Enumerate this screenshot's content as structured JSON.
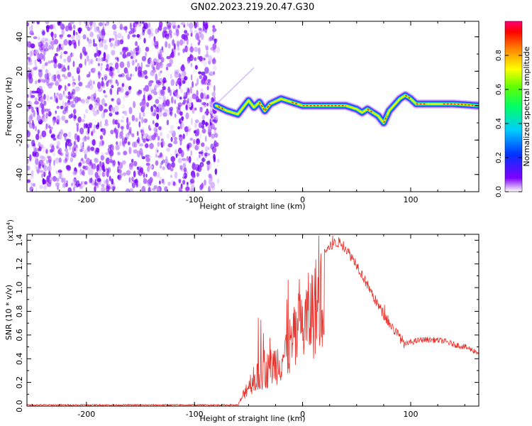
{
  "title": "GN02.2023.219.20.47.G30",
  "chart_data": [
    {
      "type": "heatmap",
      "xlabel": "Height of straight line (km)",
      "ylabel": "Frequency (Hz)",
      "xlim": [
        -255,
        163
      ],
      "ylim": [
        -50,
        49
      ],
      "x_ticks": [
        "-200",
        "-100",
        "0",
        "100"
      ],
      "y_ticks": [
        "40",
        "20",
        "0",
        "-20",
        "-40"
      ],
      "noise_region_x": [
        -255,
        -78
      ],
      "track": {
        "x": [
          -80,
          -70,
          -60,
          -50,
          -45,
          -40,
          -35,
          -30,
          -20,
          -10,
          0,
          20,
          40,
          50,
          55,
          60,
          70,
          75,
          80,
          90,
          95,
          100,
          105,
          120,
          140,
          163
        ],
        "y": [
          0,
          -3,
          -5,
          3,
          -1,
          2,
          -3,
          1,
          4,
          2,
          0,
          0,
          0,
          -2,
          -4,
          -2,
          -6,
          -10,
          -3,
          4,
          6,
          4,
          1,
          1,
          1,
          0
        ]
      },
      "colorbar": {
        "label": "Normalized spectral amplitude",
        "range": [
          0.0,
          1.0
        ],
        "ticks": [
          "0.0",
          "0.2",
          "0.4",
          "0.6",
          "0.8"
        ]
      }
    },
    {
      "type": "line",
      "xlabel": "Height of straight line (km)",
      "ylabel": "SNR (10 * v/v)",
      "y_scale_label": "(x10",
      "y_scale_exp": "4",
      "xlim": [
        -255,
        163
      ],
      "ylim": [
        0.0,
        1.45
      ],
      "x_ticks": [
        "-200",
        "-100",
        "0",
        "100"
      ],
      "y_ticks": [
        "0.0",
        "0.2",
        "0.4",
        "0.6",
        "0.8",
        "1.0",
        "1.2",
        "1.4"
      ],
      "line_color": "#e8312a",
      "envelope": {
        "x": [
          -255,
          -60,
          -58,
          -50,
          -40,
          -30,
          -20,
          -10,
          0,
          10,
          20,
          30,
          35,
          40,
          50,
          60,
          70,
          80,
          90,
          95,
          100,
          110,
          120,
          130,
          140,
          150,
          163
        ],
        "y": [
          0.01,
          0.01,
          0.05,
          0.25,
          0.35,
          0.45,
          0.55,
          0.72,
          0.92,
          1.12,
          1.3,
          1.38,
          1.38,
          1.33,
          1.2,
          1.02,
          0.85,
          0.7,
          0.58,
          0.52,
          0.54,
          0.56,
          0.56,
          0.55,
          0.52,
          0.5,
          0.45
        ]
      }
    }
  ]
}
